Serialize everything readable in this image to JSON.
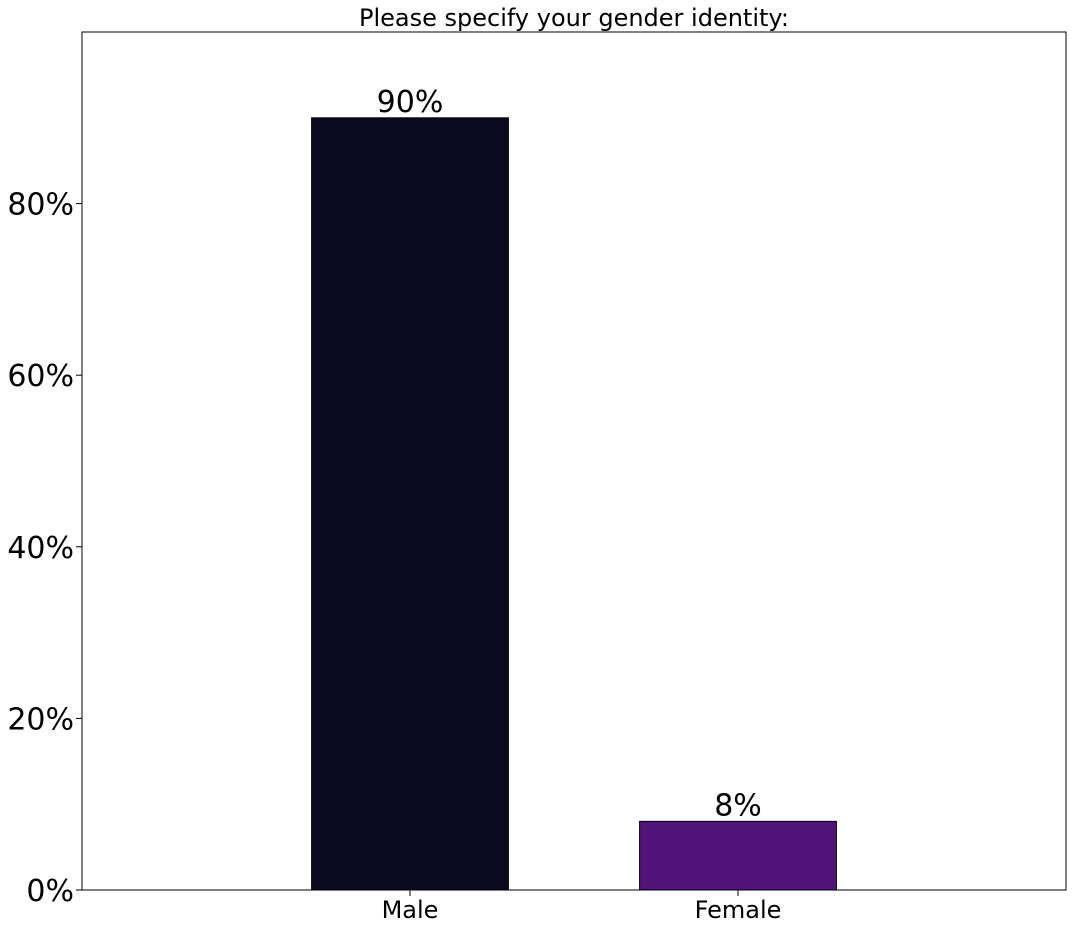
{
  "chart_data": {
    "type": "bar",
    "title": "Please specify your gender identity:",
    "xlabel": "",
    "ylabel": "",
    "categories": [
      "Male",
      "Female"
    ],
    "values": [
      90,
      8
    ],
    "value_labels": [
      "90%",
      "8%"
    ],
    "bar_colors": [
      "#0b0920",
      "#50147a"
    ],
    "ylim": [
      0,
      100
    ],
    "yticks": [
      0,
      20,
      40,
      60,
      80
    ],
    "ytick_labels": [
      "0%",
      "20%",
      "40%",
      "60%",
      "80%"
    ],
    "grid": false,
    "legend": "none"
  }
}
